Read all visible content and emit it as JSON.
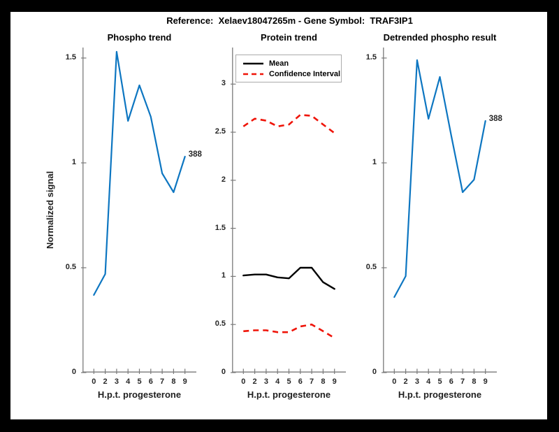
{
  "header": {
    "title": "Reference:  Xelaev18047265m - Gene Symbol:  TRAF3IP1"
  },
  "style": {
    "background": "#000000",
    "figure_background": "#ffffff",
    "axis_color": "#7a7a7a",
    "tick_text_color": "#262626",
    "blue": "#0d76c1",
    "red": "#ef1408",
    "black": "#000000"
  },
  "chart_data": [
    {
      "type": "line",
      "title": "Phospho trend",
      "xlabel": "H.p.t. progesterone",
      "ylabel": "Normalized signal",
      "x_tick_labels": [
        "0",
        "2",
        "3",
        "4",
        "5",
        "6",
        "7",
        "8",
        "9"
      ],
      "y_ticks": [
        0,
        0.5,
        1,
        1.5
      ],
      "ylim": [
        0,
        1.55
      ],
      "grid": false,
      "legend": null,
      "series": [
        {
          "name": "Phospho signal",
          "color": "#0d76c1",
          "dash": false,
          "width": 2.2,
          "values": [
            0.37,
            0.47,
            1.53,
            1.2,
            1.37,
            1.22,
            0.95,
            0.86,
            1.03
          ]
        }
      ],
      "end_label": {
        "text": "388",
        "series": 0
      }
    },
    {
      "type": "line",
      "title": "Protein trend",
      "xlabel": "H.p.t. progesterone",
      "ylabel": null,
      "x_tick_labels": [
        "0",
        "2",
        "3",
        "4",
        "5",
        "6",
        "7",
        "8",
        "9"
      ],
      "y_ticks": [
        0,
        0.5,
        1,
        1.5,
        2,
        2.5,
        3
      ],
      "ylim": [
        0,
        3.38
      ],
      "grid": false,
      "legend": {
        "position": "top-left",
        "entries": [
          {
            "label": "Mean",
            "color": "#000000",
            "dash": false
          },
          {
            "label": "Confidence Interval",
            "color": "#ef1408",
            "dash": true
          }
        ]
      },
      "series": [
        {
          "name": "Mean",
          "color": "#000000",
          "dash": false,
          "width": 2.4,
          "values": [
            1.01,
            1.02,
            1.02,
            0.99,
            0.98,
            1.09,
            1.09,
            0.94,
            0.87
          ]
        },
        {
          "name": "Confidence Interval upper",
          "color": "#ef1408",
          "dash": true,
          "width": 2.6,
          "values": [
            2.56,
            2.64,
            2.62,
            2.56,
            2.58,
            2.68,
            2.67,
            2.58,
            2.49
          ]
        },
        {
          "name": "Confidence Interval lower",
          "color": "#ef1408",
          "dash": true,
          "width": 2.6,
          "values": [
            0.43,
            0.44,
            0.44,
            0.42,
            0.42,
            0.48,
            0.5,
            0.43,
            0.36
          ]
        }
      ],
      "end_label": null
    },
    {
      "type": "line",
      "title": "Detrended phospho result",
      "xlabel": "H.p.t. progesterone",
      "ylabel": null,
      "x_tick_labels": [
        "0",
        "2",
        "3",
        "4",
        "5",
        "6",
        "7",
        "8",
        "9"
      ],
      "y_ticks": [
        0,
        0.5,
        1,
        1.5
      ],
      "ylim": [
        0,
        1.55
      ],
      "grid": false,
      "legend": null,
      "series": [
        {
          "name": "Detrended phospho signal",
          "color": "#0d76c1",
          "dash": false,
          "width": 2.2,
          "values": [
            0.36,
            0.46,
            1.49,
            1.21,
            1.41,
            1.13,
            0.86,
            0.92,
            1.2
          ]
        }
      ],
      "end_label": {
        "text": "388",
        "series": 0
      }
    }
  ]
}
